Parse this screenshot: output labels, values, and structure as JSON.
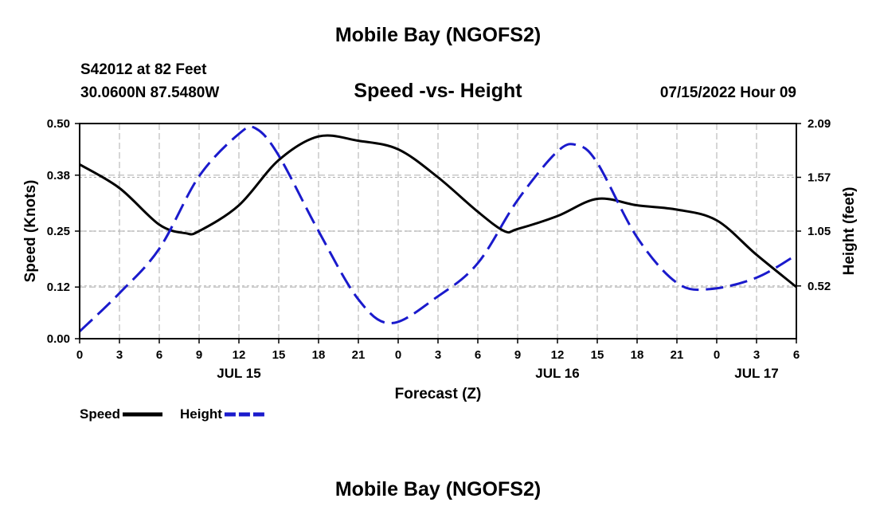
{
  "header": {
    "title": "Mobile Bay (NGOFS2)",
    "station": "S42012 at 82 Feet",
    "coords": "30.0600N  87.5480W",
    "subtitle": "Speed -vs- Height",
    "datetime": "07/15/2022 Hour 09"
  },
  "footer": {
    "title": "Mobile Bay (NGOFS2)"
  },
  "chart_data": {
    "type": "line",
    "title": "Speed -vs- Height",
    "xlabel": "Forecast (Z)",
    "ylabel": "Speed (Knots)",
    "y2label": "Height (feet)",
    "xlim": [
      0,
      54
    ],
    "ylim": [
      0,
      0.5
    ],
    "y2lim": [
      0.01,
      2.09
    ],
    "x_ticks": [
      0,
      3,
      6,
      9,
      12,
      15,
      18,
      21,
      24,
      27,
      30,
      33,
      36,
      39,
      42,
      45,
      48,
      51,
      54
    ],
    "x_tick_labels": [
      "0",
      "3",
      "6",
      "9",
      "12",
      "15",
      "18",
      "21",
      "0",
      "3",
      "6",
      "9",
      "12",
      "15",
      "18",
      "21",
      "0",
      "3",
      "6"
    ],
    "date_labels": [
      {
        "x": 12,
        "label": "JUL 15"
      },
      {
        "x": 36,
        "label": "JUL 16"
      },
      {
        "x": 51,
        "label": "JUL 17"
      }
    ],
    "y_ticks": [
      0.0,
      0.12,
      0.25,
      0.38,
      0.5
    ],
    "y_tick_labels": [
      "0.00",
      "0.12",
      "0.25",
      "0.38",
      "0.50"
    ],
    "y2_ticks": [
      0.52,
      1.05,
      1.57,
      2.09
    ],
    "y2_tick_labels": [
      "0.52",
      "1.05",
      "1.57",
      "2.09"
    ],
    "grid": true,
    "legend": [
      {
        "name": "Speed",
        "color": "#000000",
        "style": "solid"
      },
      {
        "name": "Height",
        "color": "#1a1acc",
        "style": "dashed"
      }
    ],
    "series": [
      {
        "name": "Speed",
        "axis": "left",
        "color": "#000000",
        "style": "solid",
        "x": [
          0,
          3,
          6,
          8,
          9,
          12,
          15,
          18,
          21,
          24,
          27,
          30,
          32,
          33,
          36,
          39,
          42,
          45,
          48,
          51,
          54
        ],
        "y": [
          0.405,
          0.35,
          0.265,
          0.245,
          0.25,
          0.31,
          0.415,
          0.47,
          0.46,
          0.44,
          0.375,
          0.295,
          0.25,
          0.255,
          0.285,
          0.325,
          0.31,
          0.3,
          0.275,
          0.195,
          0.12
        ]
      },
      {
        "name": "Height",
        "axis": "right",
        "color": "#1a1acc",
        "style": "dashed",
        "x": [
          0,
          3,
          6,
          9,
          12,
          13.3,
          15,
          18,
          21,
          23.5,
          27,
          30,
          33,
          36,
          37.5,
          39,
          42,
          45,
          47.5,
          51,
          54
        ],
        "y": [
          0.08,
          0.45,
          0.88,
          1.58,
          1.99,
          2.04,
          1.78,
          1.05,
          0.39,
          0.16,
          0.42,
          0.74,
          1.35,
          1.82,
          1.88,
          1.71,
          0.99,
          0.55,
          0.49,
          0.6,
          0.82
        ]
      }
    ]
  }
}
